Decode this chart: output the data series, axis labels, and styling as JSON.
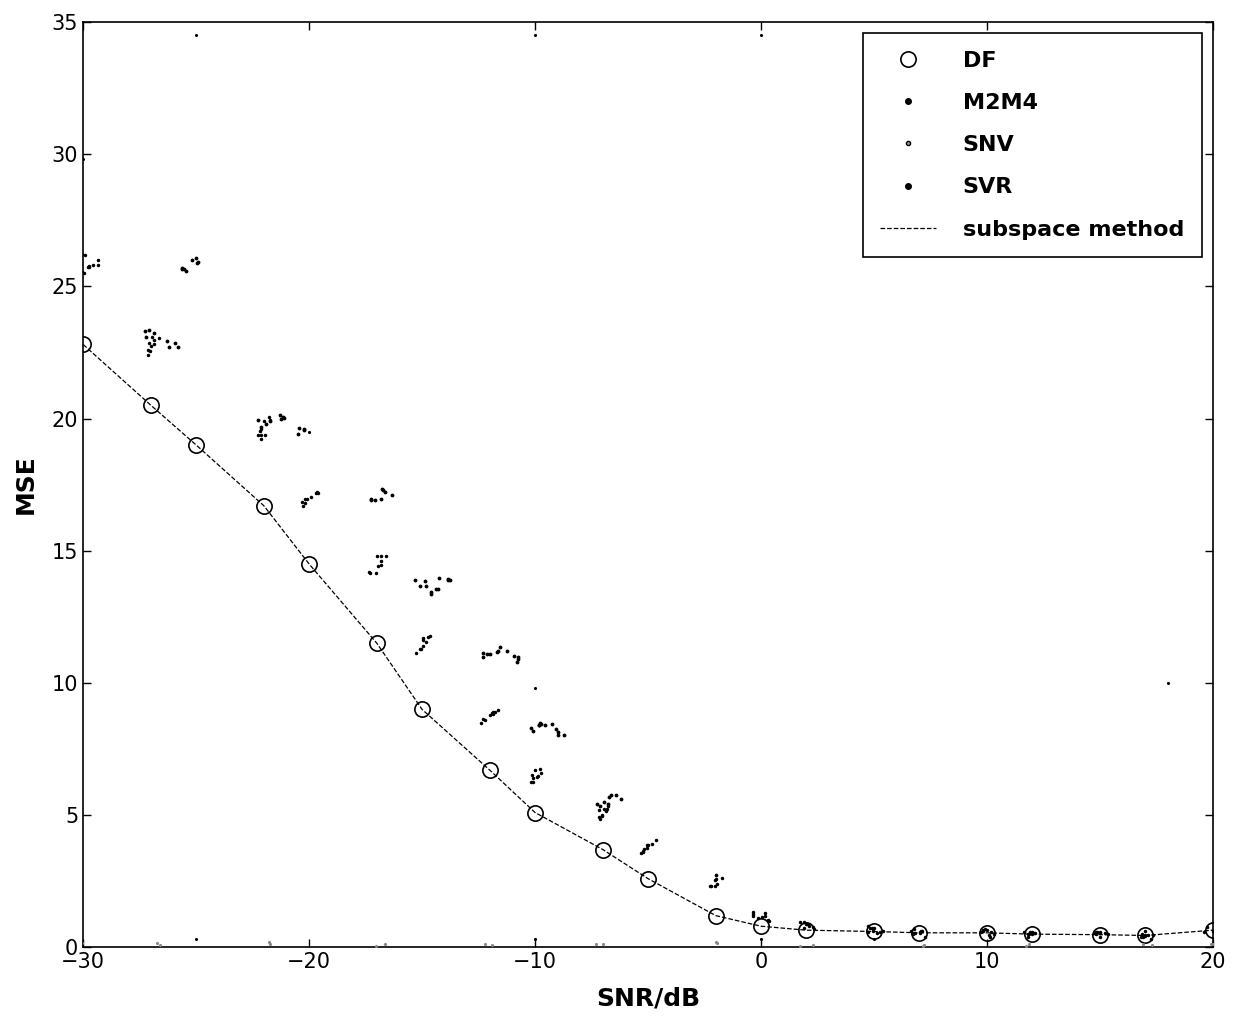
{
  "DF_x": [
    -30,
    -27,
    -25,
    -22,
    -20,
    -17,
    -15,
    -12,
    -10,
    -7,
    -5,
    -2,
    0,
    2,
    5,
    7,
    10,
    12,
    15,
    17,
    20
  ],
  "DF_y": [
    22.8,
    20.5,
    19.0,
    16.7,
    14.5,
    11.5,
    9.0,
    6.7,
    5.1,
    3.7,
    2.6,
    1.2,
    0.8,
    0.65,
    0.6,
    0.55,
    0.55,
    0.5,
    0.48,
    0.45,
    0.65
  ],
  "M2M4_pts": [
    [
      -27,
      23.2
    ],
    [
      -26,
      22.8
    ],
    [
      -25.5,
      25.7
    ],
    [
      -25,
      26.0
    ],
    [
      -22,
      19.8
    ],
    [
      -21,
      20.0
    ],
    [
      -20.5,
      19.5
    ],
    [
      -17,
      17.0
    ],
    [
      -16.5,
      17.2
    ],
    [
      -15,
      13.8
    ],
    [
      -14.5,
      13.5
    ],
    [
      -14,
      13.9
    ],
    [
      -12,
      11.1
    ],
    [
      -11.5,
      11.3
    ],
    [
      -11,
      10.9
    ],
    [
      -10,
      8.3
    ],
    [
      -9.5,
      8.5
    ],
    [
      -9,
      8.1
    ],
    [
      -7,
      5.5
    ],
    [
      -6.5,
      5.7
    ]
  ],
  "SVR_pts": [
    [
      -30,
      25.5
    ],
    [
      -30,
      26.3
    ],
    [
      -29.8,
      25.8
    ],
    [
      -29.5,
      25.9
    ],
    [
      -27,
      22.8
    ],
    [
      -26.8,
      23.0
    ],
    [
      -27.2,
      22.5
    ],
    [
      -22,
      19.5
    ],
    [
      -21.8,
      20.0
    ],
    [
      -22.2,
      19.3
    ],
    [
      -20,
      17.0
    ],
    [
      -19.8,
      17.2
    ],
    [
      -20.2,
      16.8
    ],
    [
      -17,
      14.5
    ],
    [
      -16.8,
      14.7
    ],
    [
      -17.2,
      14.2
    ],
    [
      -15,
      11.5
    ],
    [
      -14.8,
      11.7
    ],
    [
      -15.2,
      11.2
    ],
    [
      -12,
      8.8
    ],
    [
      -11.8,
      9.0
    ],
    [
      -12.2,
      8.6
    ],
    [
      -10,
      6.5
    ],
    [
      -9.8,
      6.7
    ],
    [
      -10.2,
      6.3
    ],
    [
      -7,
      5.1
    ],
    [
      -6.8,
      5.3
    ],
    [
      -7.2,
      4.9
    ],
    [
      -5,
      3.8
    ],
    [
      -4.8,
      4.0
    ],
    [
      -5.2,
      3.6
    ],
    [
      -2,
      2.5
    ],
    [
      -1.8,
      2.7
    ],
    [
      -2.2,
      2.3
    ],
    [
      0,
      1.2
    ],
    [
      -0.2,
      1.3
    ],
    [
      0.2,
      1.1
    ],
    [
      2,
      0.8
    ],
    [
      1.8,
      0.9
    ],
    [
      2.2,
      0.7
    ],
    [
      5,
      0.65
    ],
    [
      4.8,
      0.7
    ],
    [
      5.2,
      0.6
    ],
    [
      7,
      0.55
    ],
    [
      6.8,
      0.6
    ],
    [
      7.2,
      0.5
    ],
    [
      10,
      0.55
    ],
    [
      9.8,
      0.6
    ],
    [
      10.2,
      0.5
    ],
    [
      12,
      0.5
    ],
    [
      11.8,
      0.55
    ],
    [
      12.2,
      0.45
    ],
    [
      15,
      0.48
    ],
    [
      14.8,
      0.53
    ],
    [
      15.2,
      0.43
    ],
    [
      17,
      0.45
    ],
    [
      16.8,
      0.5
    ],
    [
      17.2,
      0.4
    ],
    [
      20,
      0.65
    ],
    [
      19.8,
      0.7
    ],
    [
      20.2,
      0.6
    ]
  ],
  "SNV_pts": [
    [
      -30,
      0.2
    ],
    [
      -27,
      0.1
    ],
    [
      -22,
      0.15
    ],
    [
      -17,
      0.1
    ],
    [
      -12,
      0.12
    ],
    [
      -7,
      0.1
    ],
    [
      -2,
      0.15
    ],
    [
      2,
      0.1
    ],
    [
      7,
      0.08
    ],
    [
      12,
      0.1
    ],
    [
      17,
      0.12
    ],
    [
      20,
      0.1
    ]
  ],
  "xlim": [
    -30,
    20
  ],
  "ylim": [
    0,
    35
  ],
  "xlabel": "SNR/dB",
  "ylabel": "MSE",
  "xticks": [
    -30,
    -20,
    -10,
    0,
    10,
    20
  ],
  "yticks": [
    0,
    5,
    10,
    15,
    20,
    25,
    30,
    35
  ]
}
